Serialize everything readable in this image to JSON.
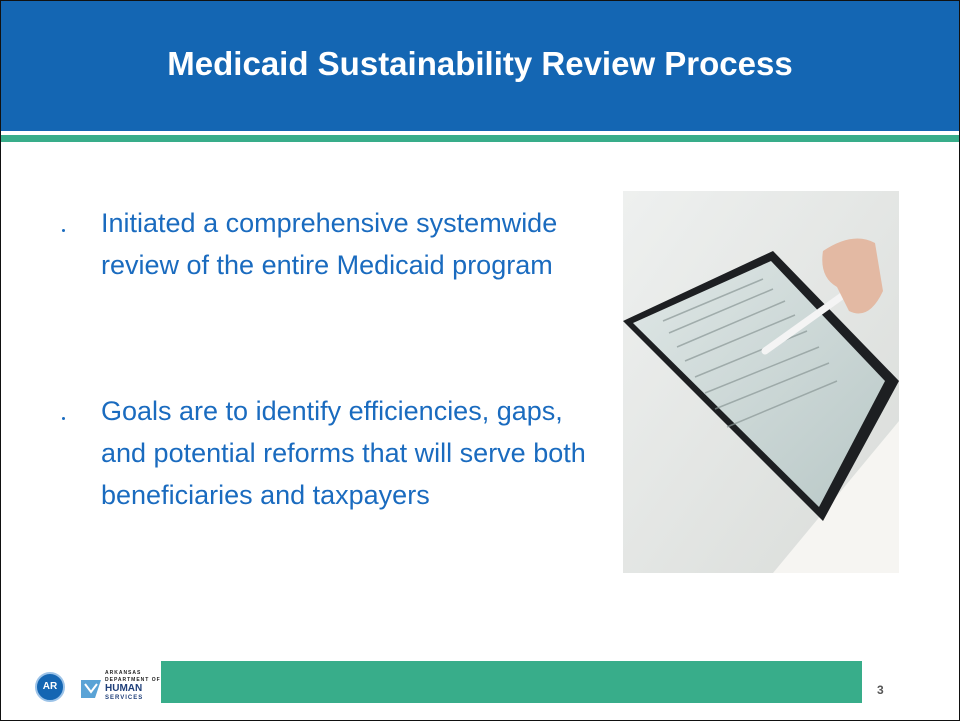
{
  "header": {
    "title": "Medicaid Sustainability Review Process"
  },
  "bullets": [
    "Initiated a comprehensive systemwide review of the entire Medicaid program",
    "Goals are to identify efficiencies, gaps, and potential reforms that will serve both beneficiaries and taxpayers"
  ],
  "footer": {
    "seal_text": "AR",
    "logo_lines": [
      "ARKANSAS",
      "DEPARTMENT OF",
      "HUMAN",
      "SERVICES"
    ],
    "page_number": "3"
  }
}
